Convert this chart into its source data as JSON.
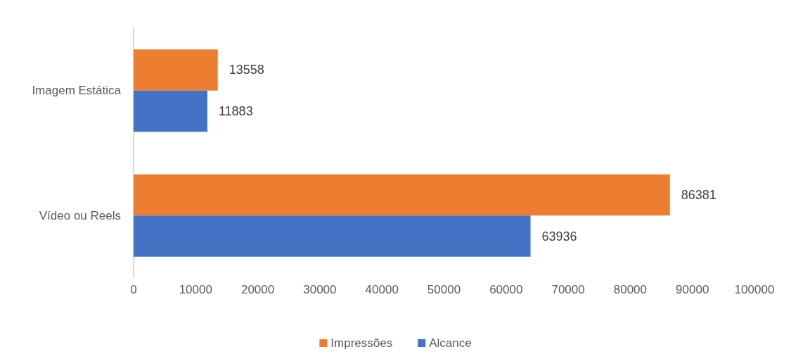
{
  "chart_data": {
    "type": "bar",
    "orientation": "horizontal",
    "categories": [
      "Imagem Estática",
      "Vídeo ou Reels"
    ],
    "series": [
      {
        "name": "Impressões",
        "color": "#ed7d31",
        "values": [
          13558,
          86381
        ]
      },
      {
        "name": "Alcance",
        "color": "#4472c4",
        "values": [
          11883,
          63936
        ]
      }
    ],
    "xlim": [
      0,
      100000
    ],
    "xticks": [
      0,
      10000,
      20000,
      30000,
      40000,
      50000,
      60000,
      70000,
      80000,
      90000,
      100000
    ],
    "data_labels": true,
    "grid": false,
    "legend": "bottom"
  }
}
